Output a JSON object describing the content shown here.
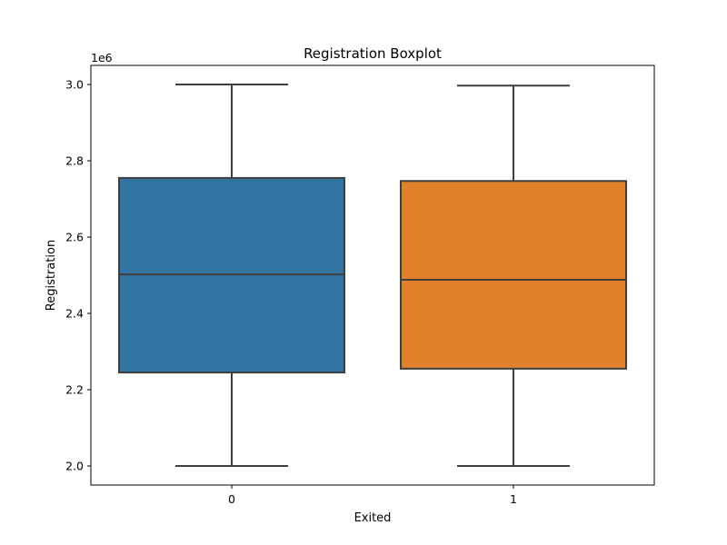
{
  "chart_data": {
    "type": "box",
    "title": "Registration Boxplot",
    "xlabel": "Exited",
    "ylabel": "Registration",
    "y_offset_label": "1e6",
    "ylim": [
      1.95,
      3.05
    ],
    "yticks": [
      2.0,
      2.2,
      2.4,
      2.6,
      2.8,
      3.0
    ],
    "ytick_labels": [
      "2.0",
      "2.2",
      "2.4",
      "2.6",
      "2.8",
      "3.0"
    ],
    "categories": [
      "0",
      "1"
    ],
    "series": [
      {
        "whisker_low": 2.0,
        "q1": 2.245,
        "median": 2.502,
        "q3": 2.755,
        "whisker_high": 3.0,
        "color": "#3274a1"
      },
      {
        "whisker_low": 2.0,
        "q1": 2.255,
        "median": 2.488,
        "q3": 2.747,
        "whisker_high": 2.997,
        "color": "#e1812c"
      }
    ],
    "grid": false,
    "line_color": "#3f3f3f"
  }
}
